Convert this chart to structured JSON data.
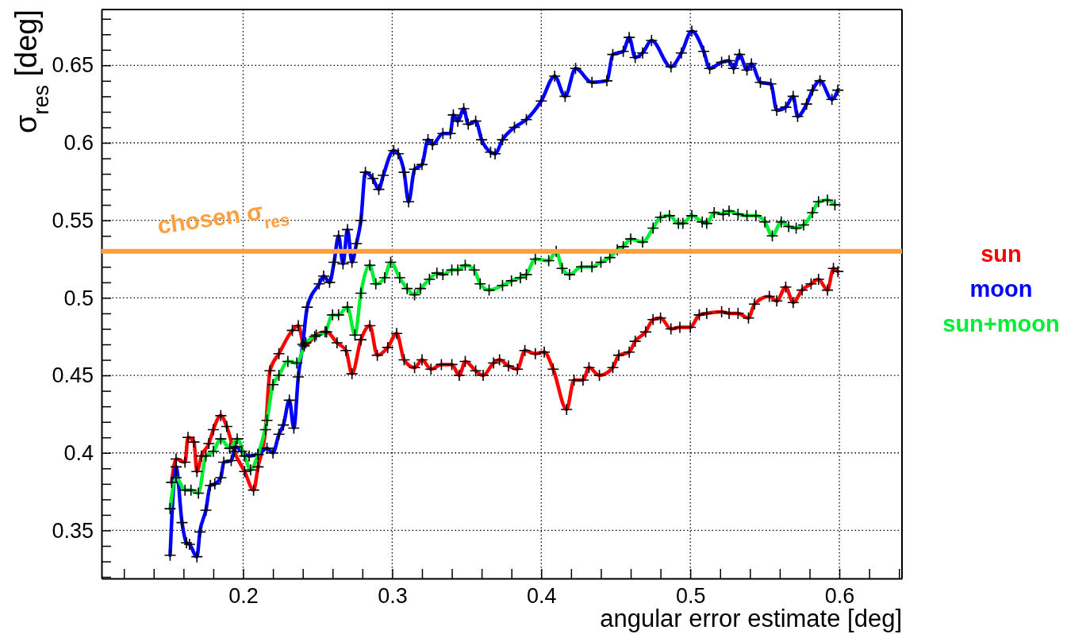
{
  "chart_data": {
    "type": "line",
    "xlabel": "angular error estimate [deg]",
    "ylabel": "σ$_{res}$ [deg]",
    "xlim": [
      0.105,
      0.642
    ],
    "ylim": [
      0.319,
      0.686
    ],
    "xticks": [
      {
        "value": 0.12,
        "label": null
      },
      {
        "value": 0.14,
        "label": null
      },
      {
        "value": 0.16,
        "label": null
      },
      {
        "value": 0.18,
        "label": null
      },
      0.2,
      {
        "value": 0.22,
        "label": null
      },
      {
        "value": 0.24,
        "label": null
      },
      {
        "value": 0.26,
        "label": null
      },
      {
        "value": 0.28,
        "label": null
      },
      0.3,
      {
        "value": 0.32,
        "label": null
      },
      {
        "value": 0.34,
        "label": null
      },
      {
        "value": 0.36,
        "label": null
      },
      {
        "value": 0.38,
        "label": null
      },
      0.4,
      {
        "value": 0.42,
        "label": null
      },
      {
        "value": 0.44,
        "label": null
      },
      {
        "value": 0.46,
        "label": null
      },
      {
        "value": 0.48,
        "label": null
      },
      0.5,
      {
        "value": 0.52,
        "label": null
      },
      {
        "value": 0.54,
        "label": null
      },
      {
        "value": 0.56,
        "label": null
      },
      {
        "value": 0.58,
        "label": null
      },
      0.6,
      {
        "value": 0.62,
        "label": null
      },
      {
        "value": 0.64,
        "label": null
      }
    ],
    "yticks": [
      {
        "value": 0.32,
        "label": null
      },
      {
        "value": 0.33,
        "label": null
      },
      {
        "value": 0.34,
        "label": null
      },
      0.35,
      {
        "value": 0.36,
        "label": null
      },
      {
        "value": 0.37,
        "label": null
      },
      {
        "value": 0.38,
        "label": null
      },
      {
        "value": 0.39,
        "label": null
      },
      0.4,
      {
        "value": 0.41,
        "label": null
      },
      {
        "value": 0.42,
        "label": null
      },
      {
        "value": 0.43,
        "label": null
      },
      {
        "value": 0.44,
        "label": null
      },
      0.45,
      {
        "value": 0.46,
        "label": null
      },
      {
        "value": 0.47,
        "label": null
      },
      {
        "value": 0.48,
        "label": null
      },
      {
        "value": 0.49,
        "label": null
      },
      0.5,
      {
        "value": 0.51,
        "label": null
      },
      {
        "value": 0.52,
        "label": null
      },
      {
        "value": 0.53,
        "label": null
      },
      {
        "value": 0.54,
        "label": null
      },
      0.55,
      {
        "value": 0.56,
        "label": null
      },
      {
        "value": 0.57,
        "label": null
      },
      {
        "value": 0.58,
        "label": null
      },
      {
        "value": 0.59,
        "label": null
      },
      0.6,
      {
        "value": 0.61,
        "label": null
      },
      {
        "value": 0.62,
        "label": null
      },
      {
        "value": 0.63,
        "label": null
      },
      {
        "value": 0.64,
        "label": null
      },
      0.65,
      {
        "value": 0.66,
        "label": null
      },
      {
        "value": 0.67,
        "label": null
      },
      {
        "value": 0.68,
        "label": null
      }
    ],
    "grid": true,
    "legend": "right",
    "marker": "cross",
    "line_style": "solid",
    "ref_lines": [
      {
        "axis": "y",
        "value": 0.53,
        "label": "chosen σ$_{res}$",
        "color": "#ffa040"
      }
    ],
    "series": [
      {
        "name": "sun",
        "color": "#ff0000",
        "x": [
          0.152,
          0.155,
          0.161,
          0.163,
          0.167,
          0.169,
          0.172,
          0.177,
          0.18,
          0.185,
          0.189,
          0.194,
          0.201,
          0.207,
          0.21,
          0.215,
          0.218,
          0.224,
          0.233,
          0.237,
          0.241,
          0.249,
          0.256,
          0.263,
          0.269,
          0.273,
          0.279,
          0.285,
          0.29,
          0.297,
          0.303,
          0.308,
          0.315,
          0.32,
          0.326,
          0.333,
          0.34,
          0.345,
          0.349,
          0.356,
          0.361,
          0.368,
          0.372,
          0.378,
          0.384,
          0.389,
          0.396,
          0.402,
          0.408,
          0.417,
          0.422,
          0.428,
          0.432,
          0.439,
          0.448,
          0.452,
          0.459,
          0.463,
          0.47,
          0.475,
          0.48,
          0.487,
          0.493,
          0.5,
          0.506,
          0.511,
          0.521,
          0.526,
          0.532,
          0.539,
          0.543,
          0.553,
          0.558,
          0.564,
          0.569,
          0.575,
          0.581,
          0.586,
          0.592,
          0.596,
          0.599
        ],
        "values": [
          0.381,
          0.396,
          0.394,
          0.41,
          0.407,
          0.388,
          0.398,
          0.406,
          0.415,
          0.424,
          0.417,
          0.401,
          0.388,
          0.376,
          0.391,
          0.415,
          0.453,
          0.464,
          0.479,
          0.482,
          0.469,
          0.476,
          0.478,
          0.471,
          0.466,
          0.451,
          0.473,
          0.482,
          0.463,
          0.468,
          0.477,
          0.46,
          0.455,
          0.46,
          0.454,
          0.457,
          0.457,
          0.45,
          0.459,
          0.453,
          0.45,
          0.458,
          0.46,
          0.456,
          0.454,
          0.466,
          0.464,
          0.465,
          0.454,
          0.428,
          0.447,
          0.447,
          0.455,
          0.45,
          0.455,
          0.463,
          0.465,
          0.472,
          0.478,
          0.486,
          0.487,
          0.48,
          0.481,
          0.481,
          0.489,
          0.49,
          0.491,
          0.49,
          0.49,
          0.487,
          0.496,
          0.501,
          0.498,
          0.507,
          0.497,
          0.505,
          0.509,
          0.512,
          0.505,
          0.519,
          0.517
        ]
      },
      {
        "name": "moon",
        "color": "#0000ff",
        "x": [
          0.151,
          0.155,
          0.159,
          0.162,
          0.164,
          0.169,
          0.171,
          0.175,
          0.178,
          0.181,
          0.185,
          0.187,
          0.192,
          0.195,
          0.199,
          0.204,
          0.21,
          0.216,
          0.22,
          0.224,
          0.227,
          0.231,
          0.234,
          0.237,
          0.24,
          0.243,
          0.251,
          0.254,
          0.258,
          0.261,
          0.264,
          0.267,
          0.27,
          0.273,
          0.276,
          0.279,
          0.282,
          0.287,
          0.291,
          0.294,
          0.301,
          0.304,
          0.308,
          0.311,
          0.315,
          0.32,
          0.324,
          0.327,
          0.334,
          0.339,
          0.341,
          0.344,
          0.348,
          0.351,
          0.356,
          0.36,
          0.366,
          0.369,
          0.374,
          0.382,
          0.39,
          0.4,
          0.409,
          0.416,
          0.423,
          0.434,
          0.444,
          0.448,
          0.455,
          0.459,
          0.463,
          0.468,
          0.474,
          0.487,
          0.494,
          0.501,
          0.509,
          0.513,
          0.521,
          0.526,
          0.529,
          0.533,
          0.538,
          0.541,
          0.547,
          0.554,
          0.558,
          0.564,
          0.569,
          0.572,
          0.578,
          0.582,
          0.587,
          0.595,
          0.599
        ],
        "values": [
          0.334,
          0.391,
          0.355,
          0.342,
          0.341,
          0.333,
          0.349,
          0.363,
          0.379,
          0.38,
          0.384,
          0.394,
          0.395,
          0.404,
          0.401,
          0.398,
          0.399,
          0.403,
          0.4,
          0.412,
          0.418,
          0.434,
          0.416,
          0.449,
          0.47,
          0.494,
          0.509,
          0.514,
          0.51,
          0.523,
          0.54,
          0.522,
          0.544,
          0.523,
          0.535,
          0.55,
          0.581,
          0.577,
          0.57,
          0.579,
          0.595,
          0.593,
          0.581,
          0.562,
          0.583,
          0.586,
          0.602,
          0.599,
          0.606,
          0.606,
          0.618,
          0.614,
          0.622,
          0.612,
          0.614,
          0.602,
          0.594,
          0.593,
          0.602,
          0.61,
          0.615,
          0.627,
          0.643,
          0.63,
          0.648,
          0.639,
          0.64,
          0.657,
          0.659,
          0.668,
          0.655,
          0.658,
          0.666,
          0.649,
          0.658,
          0.672,
          0.659,
          0.648,
          0.652,
          0.653,
          0.648,
          0.657,
          0.647,
          0.651,
          0.639,
          0.638,
          0.621,
          0.623,
          0.63,
          0.617,
          0.625,
          0.634,
          0.64,
          0.628,
          0.634
        ]
      },
      {
        "name": "sun+moon",
        "color": "#00ee33",
        "x": [
          0.151,
          0.155,
          0.161,
          0.165,
          0.17,
          0.175,
          0.18,
          0.185,
          0.191,
          0.196,
          0.201,
          0.205,
          0.21,
          0.216,
          0.22,
          0.224,
          0.23,
          0.236,
          0.242,
          0.248,
          0.255,
          0.26,
          0.264,
          0.27,
          0.275,
          0.279,
          0.285,
          0.289,
          0.295,
          0.299,
          0.305,
          0.31,
          0.315,
          0.319,
          0.325,
          0.33,
          0.334,
          0.34,
          0.344,
          0.349,
          0.355,
          0.359,
          0.365,
          0.374,
          0.38,
          0.386,
          0.39,
          0.396,
          0.405,
          0.41,
          0.414,
          0.419,
          0.427,
          0.434,
          0.44,
          0.446,
          0.451,
          0.455,
          0.46,
          0.468,
          0.475,
          0.48,
          0.486,
          0.492,
          0.495,
          0.501,
          0.508,
          0.511,
          0.516,
          0.522,
          0.526,
          0.532,
          0.538,
          0.544,
          0.55,
          0.555,
          0.561,
          0.566,
          0.571,
          0.576,
          0.582,
          0.586,
          0.592,
          0.597
        ],
        "values": [
          0.364,
          0.384,
          0.376,
          0.376,
          0.374,
          0.398,
          0.401,
          0.409,
          0.403,
          0.409,
          0.398,
          0.389,
          0.399,
          0.421,
          0.444,
          0.45,
          0.459,
          0.458,
          0.471,
          0.475,
          0.478,
          0.489,
          0.489,
          0.494,
          0.476,
          0.503,
          0.521,
          0.509,
          0.513,
          0.523,
          0.513,
          0.506,
          0.502,
          0.506,
          0.512,
          0.516,
          0.515,
          0.518,
          0.518,
          0.521,
          0.518,
          0.509,
          0.505,
          0.508,
          0.511,
          0.513,
          0.515,
          0.525,
          0.524,
          0.53,
          0.519,
          0.515,
          0.52,
          0.52,
          0.523,
          0.526,
          0.531,
          0.533,
          0.538,
          0.536,
          0.545,
          0.552,
          0.553,
          0.548,
          0.548,
          0.553,
          0.549,
          0.548,
          0.555,
          0.554,
          0.556,
          0.554,
          0.553,
          0.553,
          0.549,
          0.54,
          0.549,
          0.546,
          0.545,
          0.547,
          0.555,
          0.562,
          0.563,
          0.56
        ]
      }
    ]
  }
}
